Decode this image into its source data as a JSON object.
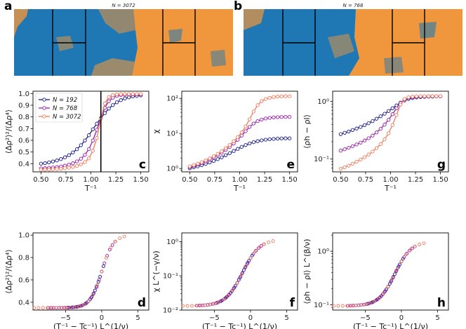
{
  "colors": {
    "blue": "#1f78b4",
    "orange": "#f0963c",
    "n192": "#1a1a8a",
    "n768": "#9b1fa8",
    "n3072": "#f07a5a"
  },
  "snapshots": [
    {
      "panel_label": "a",
      "title": "N = 3072",
      "icon": "lattice-snapshot-large"
    },
    {
      "panel_label": "b",
      "title": "N = 768",
      "icon": "lattice-snapshot-small"
    }
  ],
  "legend": [
    "N = 192",
    "N = 768",
    "N = 3072"
  ],
  "chart_data": [
    {
      "id": "c",
      "type": "line",
      "scale": "linear",
      "xlabel": "T⁻¹",
      "ylabel": "⟨Δρ²⟩²/⟨Δρ⁴⟩",
      "xlim": [
        0.42,
        1.58
      ],
      "ylim": [
        0.33,
        1.02
      ],
      "xticks": [
        0.5,
        0.75,
        1.0,
        1.25,
        1.5
      ],
      "xtick_labels": [
        "0.50",
        "0.75",
        "1.00",
        "1.25",
        "1.50"
      ],
      "yticks": [
        0.4,
        0.5,
        0.6,
        0.7,
        0.8,
        0.9,
        1.0
      ],
      "ytick_labels": [
        "0.4",
        "0.5",
        "0.6",
        "0.7",
        "0.8",
        "0.9",
        "1.0"
      ],
      "vline": 1.1,
      "x_start": 0.5,
      "x_step": 0.04,
      "series": [
        {
          "name": "N = 192",
          "values": [
            0.4,
            0.405,
            0.411,
            0.419,
            0.428,
            0.44,
            0.455,
            0.473,
            0.496,
            0.524,
            0.558,
            0.598,
            0.644,
            0.694,
            0.743,
            0.79,
            0.833,
            0.871,
            0.901,
            0.925,
            0.944,
            0.958,
            0.968,
            0.975,
            0.98,
            0.984
          ]
        },
        {
          "name": "N = 768",
          "values": [
            0.36,
            0.362,
            0.364,
            0.367,
            0.371,
            0.376,
            0.383,
            0.392,
            0.404,
            0.42,
            0.442,
            0.475,
            0.525,
            0.598,
            0.69,
            0.79,
            0.878,
            0.935,
            0.965,
            0.98,
            0.987,
            0.99,
            0.992,
            0.993,
            0.993,
            0.993
          ]
        },
        {
          "name": "N = 3072",
          "values": [
            0.348,
            0.349,
            0.35,
            0.352,
            0.354,
            0.357,
            0.361,
            0.366,
            0.372,
            0.381,
            0.394,
            0.414,
            0.446,
            0.51,
            0.62,
            0.785,
            0.915,
            0.97,
            0.987,
            0.993,
            0.995,
            0.996,
            0.996,
            0.996,
            0.996,
            0.996
          ]
        }
      ]
    },
    {
      "id": "e",
      "type": "line",
      "scale": "log",
      "xlabel": "T⁻¹",
      "ylabel": "χ",
      "xlim": [
        0.42,
        1.58
      ],
      "ylim": [
        0.8,
        160
      ],
      "xticks": [
        0.5,
        0.75,
        1.0,
        1.25,
        1.5
      ],
      "xtick_labels": [
        "0.50",
        "0.75",
        "1.00",
        "1.25",
        "1.50"
      ],
      "yticks": [
        1,
        10,
        100
      ],
      "ytick_labels": [
        "10⁰",
        "10¹",
        "10²"
      ],
      "x_start": 0.5,
      "x_step": 0.04,
      "series": [
        {
          "name": "N = 192",
          "values": [
            1.02,
            1.08,
            1.15,
            1.24,
            1.35,
            1.48,
            1.64,
            1.84,
            2.08,
            2.38,
            2.74,
            3.16,
            3.63,
            4.13,
            4.65,
            5.16,
            5.63,
            6.03,
            6.36,
            6.63,
            6.83,
            6.98,
            7.09,
            7.17,
            7.22,
            7.25
          ]
        },
        {
          "name": "N = 768",
          "values": [
            1.1,
            1.19,
            1.3,
            1.43,
            1.6,
            1.8,
            2.06,
            2.39,
            2.82,
            3.38,
            4.13,
            5.15,
            6.6,
            8.7,
            11.6,
            15.3,
            19.2,
            22.5,
            24.9,
            26.6,
            27.8,
            28.6,
            29.1,
            29.4,
            29.6,
            29.7
          ]
        },
        {
          "name": "N = 3072",
          "values": [
            1.15,
            1.25,
            1.37,
            1.52,
            1.71,
            1.94,
            2.24,
            2.62,
            3.12,
            3.79,
            4.7,
            5.97,
            7.8,
            10.7,
            15.8,
            25.3,
            42.0,
            64.0,
            83.0,
            96.0,
            104.0,
            109.0,
            112.0,
            114.0,
            115.0,
            115.5
          ]
        }
      ]
    },
    {
      "id": "g",
      "type": "line",
      "scale": "log",
      "xlabel": "T⁻¹",
      "ylabel": "⟨ρh − ρl⟩",
      "xlim": [
        0.42,
        1.58
      ],
      "ylim": [
        0.06,
        1.5
      ],
      "xticks": [
        0.5,
        0.75,
        1.0,
        1.25,
        1.5
      ],
      "xtick_labels": [
        "0.50",
        "0.75",
        "1.00",
        "1.25",
        "1.50"
      ],
      "yticks": [
        0.1,
        1
      ],
      "ytick_labels": [
        "10⁻¹",
        "10⁰"
      ],
      "x_start": 0.5,
      "x_step": 0.04,
      "series": [
        {
          "name": "N = 192",
          "values": [
            0.27,
            0.285,
            0.3,
            0.318,
            0.338,
            0.36,
            0.387,
            0.418,
            0.455,
            0.5,
            0.55,
            0.61,
            0.68,
            0.76,
            0.85,
            0.95,
            1.04,
            1.1,
            1.14,
            1.17,
            1.19,
            1.2,
            1.21,
            1.21,
            1.22,
            1.22
          ]
        },
        {
          "name": "N = 768",
          "values": [
            0.14,
            0.148,
            0.157,
            0.167,
            0.179,
            0.193,
            0.21,
            0.23,
            0.256,
            0.29,
            0.335,
            0.395,
            0.48,
            0.6,
            0.76,
            0.94,
            1.08,
            1.15,
            1.19,
            1.21,
            1.22,
            1.22,
            1.23,
            1.23,
            1.23,
            1.23
          ]
        },
        {
          "name": "N = 3072",
          "values": [
            0.068,
            0.072,
            0.077,
            0.083,
            0.09,
            0.098,
            0.108,
            0.12,
            0.135,
            0.155,
            0.182,
            0.22,
            0.28,
            0.39,
            0.58,
            0.88,
            1.1,
            1.18,
            1.21,
            1.22,
            1.23,
            1.23,
            1.23,
            1.23,
            1.23,
            1.23
          ]
        }
      ]
    },
    {
      "id": "d",
      "type": "scatter",
      "scale": "linear",
      "xlabel": "(T⁻¹ − Tc⁻¹) L^(1/ν)",
      "ylabel": "⟨Δρ²⟩²/⟨Δρ⁴⟩",
      "xlim": [
        -9.5,
        6.5
      ],
      "ylim": [
        0.33,
        1.02
      ],
      "xticks": [
        -5,
        0,
        5
      ],
      "xtick_labels": [
        "−5",
        "0",
        "5"
      ],
      "yticks": [
        0.4,
        0.6,
        0.8,
        1.0
      ],
      "ytick_labels": [
        "0.4",
        "0.6",
        "0.8",
        "1.0"
      ],
      "series": [
        {
          "name": "N = 192",
          "scale_factor": 1.0
        },
        {
          "name": "N = 768",
          "scale_factor": 1.6
        },
        {
          "name": "N = 3072",
          "scale_factor": 2.7
        }
      ]
    },
    {
      "id": "f",
      "type": "scatter",
      "scale": "log",
      "xlabel": "(T⁻¹ − Tc⁻¹) L^(1/ν)",
      "ylabel": "χ L^(−γ/ν)",
      "xlim": [
        -9.5,
        6.5
      ],
      "ylim": [
        0.01,
        1.8
      ],
      "xticks": [
        -5,
        0,
        5
      ],
      "xtick_labels": [
        "−5",
        "0",
        "5"
      ],
      "yticks": [
        0.01,
        0.1,
        1
      ],
      "ytick_labels": [
        "10⁻²",
        "10⁻¹",
        "10⁰"
      ],
      "series": [
        {
          "name": "N = 192",
          "scale_factor": 1.0
        },
        {
          "name": "N = 768",
          "scale_factor": 1.6
        },
        {
          "name": "N = 3072",
          "scale_factor": 2.7
        }
      ]
    },
    {
      "id": "h",
      "type": "scatter",
      "scale": "log",
      "xlabel": "(T⁻¹ − Tc⁻¹) L^(1/ν)",
      "ylabel": "⟨ρh − ρl⟩ L^(β/ν)",
      "xlim": [
        -9.5,
        6.5
      ],
      "ylim": [
        0.08,
        2.2
      ],
      "xticks": [
        -5,
        0,
        5
      ],
      "xtick_labels": [
        "−5",
        "0",
        "5"
      ],
      "yticks": [
        0.1,
        1
      ],
      "ytick_labels": [
        "10⁻¹",
        "10⁰"
      ],
      "series": [
        {
          "name": "N = 192",
          "scale_factor": 1.0
        },
        {
          "name": "N = 768",
          "scale_factor": 1.6
        },
        {
          "name": "N = 3072",
          "scale_factor": 2.7
        }
      ]
    }
  ]
}
